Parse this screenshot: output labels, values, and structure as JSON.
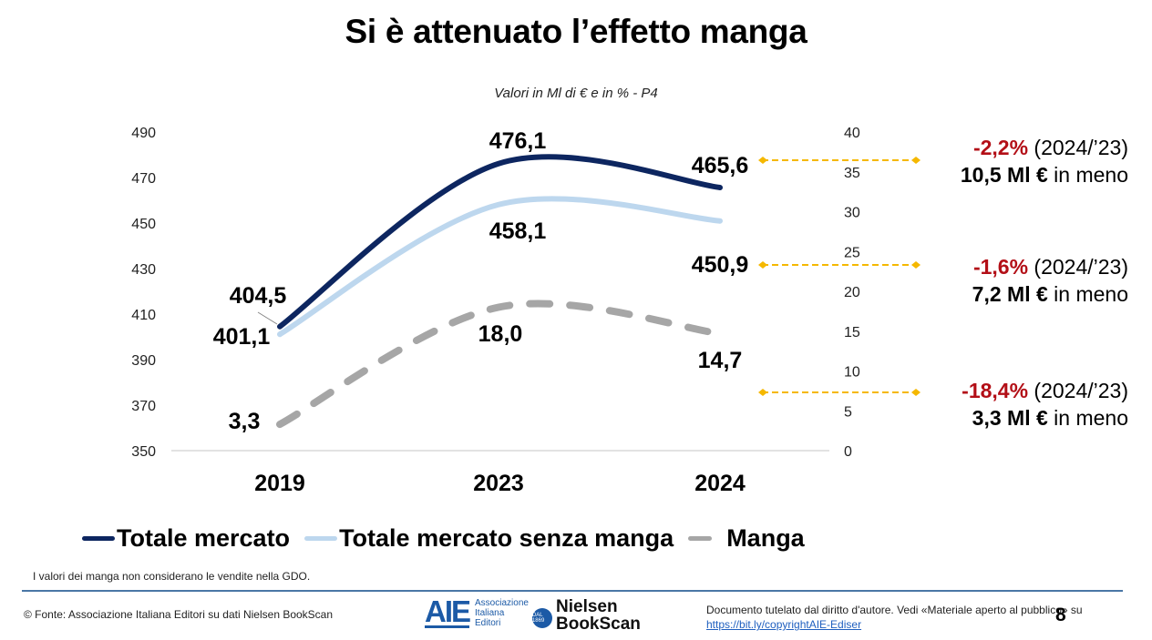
{
  "header": {
    "title": "Si è attenuato l’effetto manga",
    "subtitle": "Valori in Ml di € e in % - P4"
  },
  "chart_data": {
    "type": "line",
    "title": "Si è attenuato l’effetto manga",
    "subtitle": "Valori in Ml di € e in % - P4",
    "categories": [
      "2019",
      "2023",
      "2024"
    ],
    "xlabel": "",
    "ylabel": "",
    "y_left": {
      "range": [
        350,
        490
      ],
      "ticks": [
        "350",
        "370",
        "390",
        "410",
        "430",
        "450",
        "470",
        "490"
      ]
    },
    "y_right": {
      "range": [
        0,
        40
      ],
      "ticks": [
        "0",
        "5",
        "10",
        "15",
        "20",
        "25",
        "30",
        "35",
        "40"
      ]
    },
    "grid": false,
    "smooth": true,
    "legend_position": "bottom",
    "series": [
      {
        "name": "Totale mercato",
        "axis": "left",
        "color": "#0d2660",
        "style": "solid",
        "values": [
          404.5,
          476.1,
          465.6
        ],
        "labels": [
          "404,5",
          "476,1",
          "465,6"
        ]
      },
      {
        "name": "Totale mercato senza manga",
        "axis": "left",
        "color": "#bdd7ee",
        "style": "solid",
        "values": [
          401.1,
          458.1,
          450.9
        ],
        "labels": [
          "401,1",
          "458,1",
          "450,9"
        ]
      },
      {
        "name": "Manga",
        "axis": "right",
        "color": "#a6a6a6",
        "style": "dashed",
        "values": [
          3.3,
          18.0,
          14.7
        ],
        "labels": [
          "3,3",
          "18,0",
          "14,7"
        ]
      }
    ],
    "annotations": [
      {
        "pct": "-2,2%",
        "period": " (2024/’23)",
        "amount": "10,5 Ml €",
        "suffix": " in meno"
      },
      {
        "pct": "-1,6%",
        "period": " (2024/’23)",
        "amount": "7,2 Ml €",
        "suffix": " in meno"
      },
      {
        "pct": "-18,4%",
        "period": " (2024/’23)",
        "amount": "3,3 Ml €",
        "suffix": " in meno"
      }
    ],
    "annotation_arrow_color": "#f5b800",
    "annotation_pct_color": "#b30f17"
  },
  "footer": {
    "note": "I valori dei manga non considerano le vendite nella GDO.",
    "source": "© Fonte: Associazione Italiana Editori su dati Nielsen BookScan",
    "aie_logo": {
      "mark": "AIE",
      "line1": "Associazione",
      "line2": "Italiana",
      "line3": "Editori",
      "seal": "DAL 1869"
    },
    "nielsen_logo": {
      "line1": "Nielsen",
      "line2": "BookScan"
    },
    "copyright_text": "Documento tutelato dal diritto d'autore. Vedi «Materiale aperto al pubblico» su ",
    "copyright_link": "https://bit.ly/copyrightAIE-Ediser",
    "page_number": "8"
  }
}
